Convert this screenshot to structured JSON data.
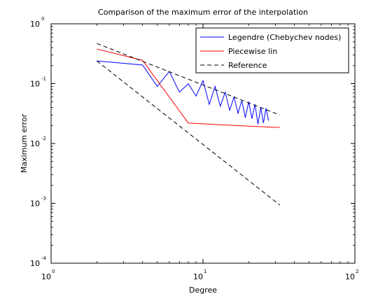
{
  "chart_data": {
    "type": "line",
    "title": "Comparison of the maximum error of the interpolation",
    "xlabel": "Degree",
    "ylabel": "Maximum error",
    "xscale": "log",
    "yscale": "log",
    "xlim": [
      1,
      100
    ],
    "ylim": [
      0.0001,
      1
    ],
    "grid": false,
    "legend_position": "top-right",
    "x_ticks": [
      {
        "base": "10",
        "exp": "0",
        "value": 1
      },
      {
        "base": "10",
        "exp": "1",
        "value": 10
      },
      {
        "base": "10",
        "exp": "2",
        "value": 100
      }
    ],
    "y_ticks": [
      {
        "base": "10",
        "exp": "-4",
        "value": 0.0001
      },
      {
        "base": "10",
        "exp": "-3",
        "value": 0.001
      },
      {
        "base": "10",
        "exp": "-2",
        "value": 0.01
      },
      {
        "base": "10",
        "exp": "-1",
        "value": 0.1
      },
      {
        "base": "10",
        "exp": "0",
        "value": 1
      }
    ],
    "series": [
      {
        "name": "Legendre (Chebychev nodes)",
        "color": "#0000ff",
        "style": "solid",
        "points": [
          [
            2,
            0.24
          ],
          [
            4,
            0.205
          ],
          [
            5,
            0.09
          ],
          [
            6,
            0.16
          ],
          [
            7,
            0.072
          ],
          [
            8,
            0.1
          ],
          [
            9,
            0.062
          ],
          [
            10,
            0.112
          ],
          [
            11,
            0.045
          ],
          [
            12,
            0.09
          ],
          [
            13,
            0.042
          ],
          [
            14,
            0.072
          ],
          [
            15,
            0.036
          ],
          [
            16,
            0.06
          ],
          [
            17,
            0.032
          ],
          [
            18,
            0.052
          ],
          [
            19,
            0.027
          ],
          [
            20,
            0.05
          ],
          [
            21,
            0.026
          ],
          [
            22,
            0.045
          ],
          [
            23,
            0.021
          ],
          [
            24,
            0.04
          ],
          [
            25,
            0.022
          ],
          [
            26,
            0.039
          ],
          [
            27,
            0.024
          ]
        ]
      },
      {
        "name": "Piecewise lin",
        "color": "#ff0000",
        "style": "solid",
        "points": [
          [
            2,
            0.38
          ],
          [
            4,
            0.245
          ],
          [
            8,
            0.022
          ],
          [
            16,
            0.02
          ],
          [
            32,
            0.0185
          ]
        ]
      },
      {
        "name": "Reference",
        "color": "#000000",
        "style": "dashed",
        "lines": [
          [
            [
              2,
              0.47
            ],
            [
              32,
              0.03
            ]
          ],
          [
            [
              2,
              0.24
            ],
            [
              32,
              0.00094
            ]
          ]
        ]
      }
    ]
  }
}
